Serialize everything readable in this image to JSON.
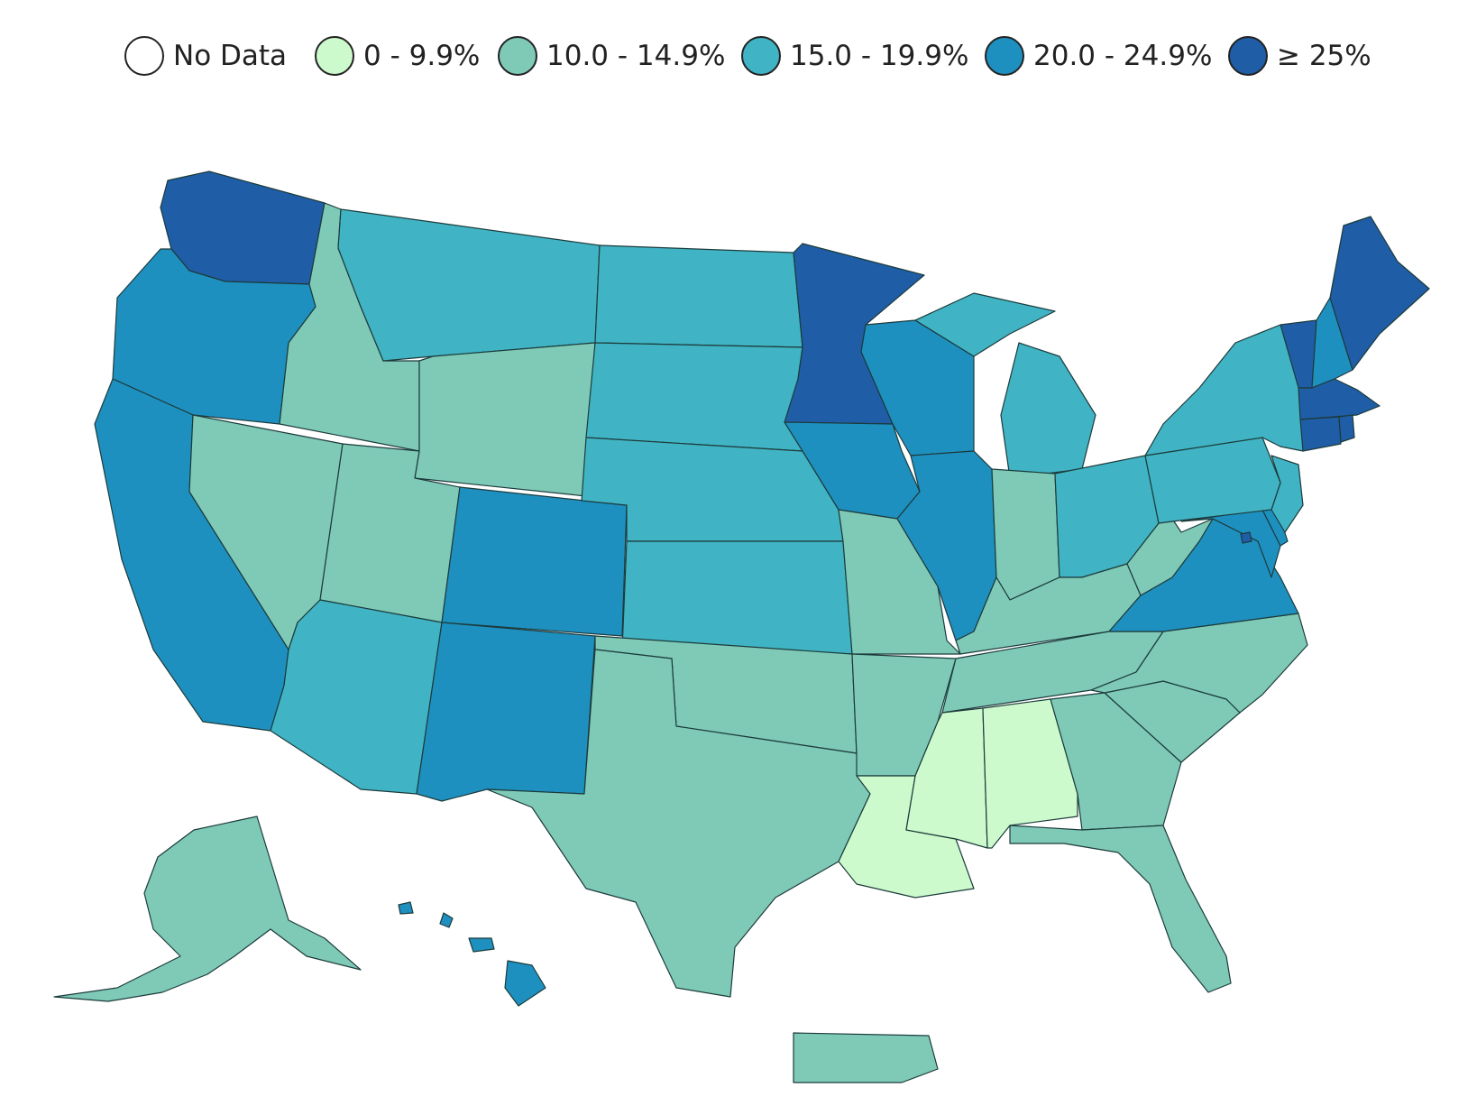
{
  "legend": {
    "items": [
      {
        "label": "No Data",
        "color": "#ffffff",
        "class": "none"
      },
      {
        "label": "0 - 9.9%",
        "color": "#ccfacc",
        "class": "c0"
      },
      {
        "label": "10.0 - 14.9%",
        "color": "#7ecab7",
        "class": "c1"
      },
      {
        "label": "15.0 - 19.9%",
        "color": "#40b4c4",
        "class": "c2"
      },
      {
        "label": "20.0 - 24.9%",
        "color": "#1e90c0",
        "class": "c3"
      },
      {
        "label": "≥ 25%",
        "color": "#1f5da6",
        "class": "c4"
      }
    ]
  },
  "regions": {
    "WA": "c4",
    "OR": "c3",
    "CA": "c3",
    "ID": "c1",
    "NV": "c1",
    "MT": "c2",
    "WY": "c1",
    "UT": "c1",
    "AZ": "c2",
    "CO": "c3",
    "NM": "c3",
    "ND": "c2",
    "SD": "c2",
    "NE": "c2",
    "KS": "c2",
    "OK": "c1",
    "TX": "c1",
    "MN": "c4",
    "IA": "c3",
    "MO": "c1",
    "AR": "c1",
    "LA": "c0",
    "WI": "c3",
    "IL": "c3",
    "MI": "c2",
    "IN": "c1",
    "OH": "c2",
    "KY": "c1",
    "TN": "c1",
    "MS": "c0",
    "AL": "c0",
    "GA": "c1",
    "FL": "c1",
    "SC": "c1",
    "NC": "c1",
    "VA": "c3",
    "WV": "c1",
    "MD": "c3",
    "DE": "c3",
    "NJ": "c2",
    "PA": "c2",
    "NY": "c2",
    "VT": "c4",
    "NH": "c3",
    "ME": "c4",
    "MA": "c4",
    "CT": "c4",
    "RI": "c4",
    "DC": "c4",
    "AK": "c1",
    "HI": "c3",
    "PR": "c1"
  }
}
